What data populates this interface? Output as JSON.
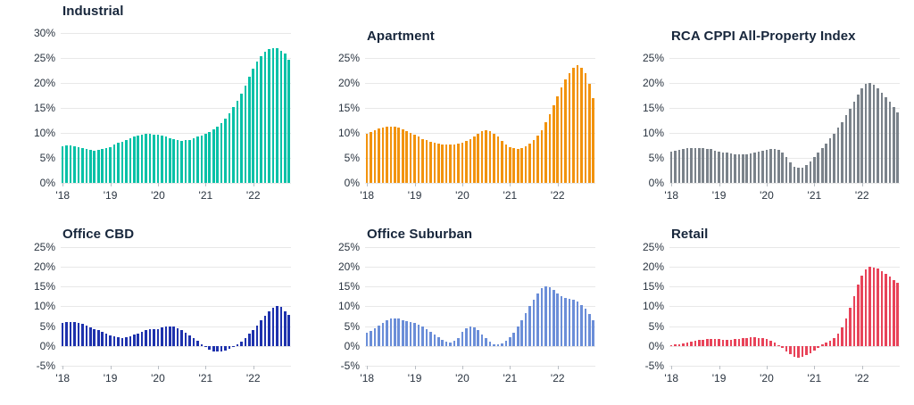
{
  "page": {
    "background": "#ffffff"
  },
  "chart_data": [
    {
      "type": "bar",
      "title": "Industrial",
      "color": "#06c1a7",
      "unit": "%",
      "ylim": [
        0,
        30
      ],
      "ytick_step": 5,
      "grid": true,
      "xtick_labels": [
        "'18",
        "'19",
        "'20",
        "'21",
        "'22"
      ],
      "xtick_indices": [
        0,
        12,
        24,
        36,
        48
      ],
      "values": [
        7.4,
        7.5,
        7.5,
        7.4,
        7.2,
        7.0,
        6.8,
        6.6,
        6.5,
        6.6,
        6.7,
        6.9,
        7.2,
        7.6,
        8.0,
        8.3,
        8.6,
        8.9,
        9.2,
        9.4,
        9.6,
        9.8,
        9.8,
        9.7,
        9.6,
        9.4,
        9.2,
        8.9,
        8.7,
        8.5,
        8.4,
        8.5,
        8.6,
        8.9,
        9.2,
        9.5,
        9.8,
        10.2,
        10.7,
        11.3,
        12.0,
        12.9,
        13.9,
        15.1,
        16.4,
        17.9,
        19.5,
        21.2,
        22.8,
        24.2,
        25.4,
        26.3,
        26.8,
        27.0,
        26.9,
        26.5,
        25.9,
        24.7
      ]
    },
    {
      "type": "bar",
      "title": "Apartment",
      "color": "#f2930d",
      "unit": "%",
      "ylim": [
        0,
        25
      ],
      "ytick_step": 5,
      "grid": true,
      "xtick_labels": [
        "'18",
        "'19",
        "'20",
        "'21",
        "'22"
      ],
      "xtick_indices": [
        0,
        12,
        24,
        36,
        48
      ],
      "values": [
        9.8,
        10.2,
        10.6,
        10.9,
        11.1,
        11.3,
        11.3,
        11.2,
        11.0,
        10.7,
        10.4,
        10.0,
        9.6,
        9.2,
        8.8,
        8.5,
        8.2,
        8.0,
        7.8,
        7.7,
        7.6,
        7.6,
        7.7,
        7.9,
        8.1,
        8.4,
        8.8,
        9.3,
        9.8,
        10.3,
        10.5,
        10.3,
        9.9,
        9.2,
        8.4,
        7.7,
        7.2,
        6.9,
        6.8,
        7.0,
        7.3,
        7.8,
        8.5,
        9.4,
        10.6,
        12.1,
        13.8,
        15.6,
        17.4,
        19.1,
        20.7,
        22.0,
        23.0,
        23.5,
        23.1,
        21.9,
        19.9,
        16.9
      ]
    },
    {
      "type": "bar",
      "title": "RCA CPPI All-Property Index",
      "color": "#7a828a",
      "unit": "%",
      "ylim": [
        0,
        25
      ],
      "ytick_step": 5,
      "grid": true,
      "xtick_labels": [
        "'18",
        "'19",
        "'20",
        "'21",
        "'22"
      ],
      "xtick_indices": [
        0,
        12,
        24,
        36,
        48
      ],
      "values": [
        6.2,
        6.4,
        6.6,
        6.8,
        6.9,
        7.0,
        7.0,
        6.9,
        6.9,
        6.8,
        6.7,
        6.5,
        6.3,
        6.1,
        6.0,
        5.9,
        5.8,
        5.7,
        5.7,
        5.8,
        5.9,
        6.1,
        6.3,
        6.5,
        6.6,
        6.7,
        6.8,
        6.6,
        6.0,
        5.1,
        4.1,
        3.3,
        3.0,
        3.1,
        3.6,
        4.3,
        5.2,
        6.1,
        7.0,
        7.9,
        8.9,
        9.9,
        11.0,
        12.2,
        13.5,
        14.9,
        16.3,
        17.7,
        19.0,
        19.8,
        20.0,
        19.6,
        18.9,
        18.1,
        17.2,
        16.2,
        15.2,
        14.1
      ]
    },
    {
      "type": "bar",
      "title": "Office CBD",
      "color": "#1e32ad",
      "unit": "%",
      "ylim": [
        -5,
        25
      ],
      "ytick_step": 5,
      "grid": true,
      "xtick_labels": [
        "'18",
        "'19",
        "'20",
        "'21",
        "'22"
      ],
      "xtick_indices": [
        0,
        12,
        24,
        36,
        48
      ],
      "values": [
        5.8,
        6.0,
        6.1,
        6.0,
        5.8,
        5.5,
        5.1,
        4.7,
        4.3,
        3.9,
        3.5,
        3.1,
        2.7,
        2.4,
        2.1,
        2.0,
        2.1,
        2.4,
        2.8,
        3.2,
        3.6,
        4.0,
        4.2,
        4.3,
        4.3,
        4.6,
        4.9,
        5.0,
        4.8,
        4.4,
        3.9,
        3.3,
        2.6,
        1.9,
        1.2,
        0.5,
        -0.3,
        -0.9,
        -1.4,
        -1.5,
        -1.4,
        -1.1,
        -0.7,
        -0.2,
        0.4,
        1.1,
        2.0,
        3.0,
        4.1,
        5.2,
        6.4,
        7.5,
        8.6,
        9.5,
        10.0,
        9.8,
        8.8,
        7.8
      ]
    },
    {
      "type": "bar",
      "title": "Office Suburban",
      "color": "#6b8ed8",
      "unit": "%",
      "ylim": [
        -5,
        25
      ],
      "ytick_step": 5,
      "grid": true,
      "xtick_labels": [
        "'18",
        "'19",
        "'20",
        "'21",
        "'22"
      ],
      "xtick_indices": [
        0,
        12,
        24,
        36,
        48
      ],
      "values": [
        3.3,
        3.8,
        4.4,
        5.1,
        5.8,
        6.4,
        6.9,
        7.0,
        6.8,
        6.5,
        6.2,
        6.0,
        5.8,
        5.4,
        4.9,
        4.3,
        3.6,
        2.8,
        2.1,
        1.5,
        1.1,
        0.9,
        1.2,
        2.0,
        3.5,
        4.4,
        4.8,
        4.6,
        3.9,
        2.9,
        1.9,
        1.0,
        0.5,
        0.4,
        0.7,
        1.3,
        2.2,
        3.4,
        4.8,
        6.4,
        8.2,
        10.0,
        11.7,
        13.3,
        14.5,
        15.0,
        14.7,
        14.0,
        13.1,
        12.5,
        12.1,
        11.9,
        11.6,
        11.1,
        10.3,
        9.3,
        8.0,
        6.4
      ]
    },
    {
      "type": "bar",
      "title": "Retail",
      "color": "#e84359",
      "unit": "%",
      "ylim": [
        -5,
        25
      ],
      "ytick_step": 5,
      "grid": true,
      "xtick_labels": [
        "'18",
        "'19",
        "'20",
        "'21",
        "'22"
      ],
      "xtick_indices": [
        0,
        12,
        24,
        36,
        48
      ],
      "values": [
        0.2,
        0.3,
        0.5,
        0.7,
        0.9,
        1.1,
        1.3,
        1.5,
        1.6,
        1.7,
        1.7,
        1.7,
        1.7,
        1.6,
        1.6,
        1.6,
        1.7,
        1.8,
        1.9,
        2.0,
        2.1,
        2.1,
        2.0,
        1.9,
        1.7,
        1.3,
        0.8,
        0.2,
        -0.5,
        -1.3,
        -2.1,
        -2.7,
        -2.9,
        -2.8,
        -2.4,
        -1.8,
        -1.1,
        -0.4,
        0.3,
        0.8,
        1.3,
        2.0,
        3.1,
        4.7,
        6.8,
        9.5,
        12.5,
        15.5,
        17.8,
        19.2,
        19.9,
        19.8,
        19.4,
        18.8,
        18.1,
        17.4,
        16.6,
        15.9
      ]
    }
  ]
}
